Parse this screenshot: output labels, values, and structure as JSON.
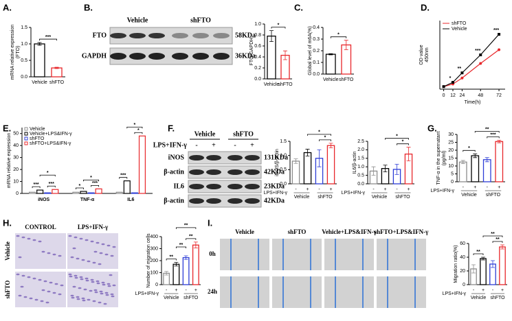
{
  "panel_labels": [
    "A.",
    "B.",
    "C.",
    "D.",
    "E.",
    "F.",
    "G.",
    "H.",
    "I."
  ],
  "blot_B": {
    "groups": [
      "Vehicle",
      "shFTO"
    ],
    "rows": [
      "FTO",
      "GAPDH"
    ],
    "sizes": [
      "58KDa",
      "36KDa"
    ]
  },
  "blot_F": {
    "groups": [
      "Vehicle",
      "shFTO"
    ],
    "treatment": "LPS+IFN-γ",
    "signs": [
      "-",
      "+",
      "-",
      "+"
    ],
    "rows": [
      "iNOS",
      "β-actin",
      "IL6",
      "β-actin"
    ],
    "sizes": [
      "131KDa",
      "42KDa",
      "23KDa",
      "42KDa"
    ]
  },
  "images_H": {
    "columns": [
      "CONTROL",
      "LPS+IFN-γ"
    ],
    "rows": [
      "Vehicle",
      "shFTO"
    ]
  },
  "images_I": {
    "columns": [
      "Vehicle",
      "shFTO",
      "Vehicle+LPS&IFN-γ",
      "shFTO+LPS&IFN-γ"
    ],
    "rows": [
      "0h",
      "24h"
    ]
  },
  "chart_data": [
    {
      "type": "bar",
      "ylabel": [
        "mRNA relative expression",
        "(FTO)"
      ],
      "categories": [
        "Vehicle",
        "shFTO"
      ],
      "values": [
        1.0,
        0.27
      ],
      "errors": [
        0.04,
        0.02
      ],
      "colors": [
        "#000000",
        "#e8262a"
      ],
      "ylim": [
        0,
        1.5
      ],
      "yticks": [
        {
          "value": 0,
          "label": "0.0"
        },
        {
          "value": 0.5,
          "label": "0.5"
        },
        {
          "value": 1,
          "label": "1.0"
        },
        {
          "value": 1.5,
          "label": "1.5"
        }
      ],
      "annotations": [
        "***"
      ]
    },
    {
      "type": "bar",
      "ylabel": [
        "FTO/GAPDH"
      ],
      "categories": [
        "Vehicle",
        "shFTO"
      ],
      "values": [
        0.78,
        0.43
      ],
      "errors": [
        0.1,
        0.08
      ],
      "colors": [
        "#000000",
        "#e8262a"
      ],
      "ylim": [
        0,
        1.0
      ],
      "yticks": [
        {
          "value": 0,
          "label": "0.0"
        },
        {
          "value": 0.2,
          "label": "0.2"
        },
        {
          "value": 0.4,
          "label": "0.4"
        },
        {
          "value": 0.6,
          "label": "0.6"
        },
        {
          "value": 0.8,
          "label": "0.8"
        },
        {
          "value": 1,
          "label": "1.0"
        }
      ],
      "annotations": [
        "*"
      ]
    },
    {
      "type": "bar",
      "ylabel": [
        "Global level of m6A(%)"
      ],
      "categories": [
        "Vehicle",
        "shFTO"
      ],
      "values": [
        0.17,
        0.25
      ],
      "errors": [
        0.005,
        0.04
      ],
      "colors": [
        "#000000",
        "#e8262a"
      ],
      "ylim": [
        0,
        0.4
      ],
      "yticks": [
        {
          "value": 0,
          "label": "0.0"
        },
        0.1,
        0.2,
        0.3,
        0.4
      ],
      "annotations": [
        "*"
      ]
    },
    {
      "type": "line",
      "xlabel": "Time(h)",
      "ylabel": [
        "OD value",
        "450nm"
      ],
      "x": [
        0,
        12,
        24,
        48,
        72
      ],
      "xlim": [
        -5,
        80
      ],
      "xticks": [
        0,
        12,
        24,
        48,
        72
      ],
      "ylim": [
        0,
        4
      ],
      "legend": "top-left",
      "series": [
        {
          "name": "shFTO",
          "color": "#e8262a",
          "values": [
            0.15,
            0.3,
            0.65,
            1.5,
            2.3
          ]
        },
        {
          "name": "Vehicle",
          "color": "#000000",
          "values": [
            0.15,
            0.4,
            0.95,
            2.0,
            3.2
          ]
        }
      ],
      "annotations": [
        "*",
        "**",
        "***",
        "***"
      ]
    },
    {
      "type": "grouped_bar",
      "ylabel": [
        "mRNA relative expression"
      ],
      "categories": [
        "iNOS",
        "TNF-α",
        "IL6"
      ],
      "legend": "top-left",
      "ylim": [
        0,
        55
      ],
      "yticks": [
        0,
        10,
        20,
        30,
        40,
        50
      ],
      "series": [
        {
          "name": "Vehicle",
          "color": "#8c8c8c",
          "values": [
            1,
            1,
            1
          ]
        },
        {
          "name": "Vehicle+LPS&IFN-γ",
          "color": "#000000",
          "values": [
            2.8,
            1.7,
            10.5
          ]
        },
        {
          "name": "shFTO",
          "color": "#2c3cd6",
          "values": [
            0.5,
            0.5,
            0.5
          ]
        },
        {
          "name": "shFTO+LPS&IFN-γ",
          "color": "#e8262a",
          "values": [
            3.3,
            3.8,
            48
          ]
        }
      ],
      "annotations": [
        "***",
        "*",
        "***",
        "*",
        "*",
        "***",
        "***",
        "*",
        "*"
      ]
    },
    {
      "type": "bar",
      "ylabel": [
        "iNOS/β-actin"
      ],
      "categories": [
        "-",
        "+",
        "-",
        "+"
      ],
      "groups": [
        "Vehicle",
        "shFTO"
      ],
      "treatment": "LPS+IFN-γ",
      "values": [
        0.8,
        1.1,
        0.9,
        1.35
      ],
      "errors": [
        0.08,
        0.12,
        0.3,
        0.08
      ],
      "colors": [
        "#8c8c8c",
        "#000000",
        "#2c3cd6",
        "#e8262a"
      ],
      "ylim": [
        0,
        1.5
      ],
      "yticks": [
        {
          "value": 0,
          "label": "0.0"
        },
        {
          "value": 0.5,
          "label": "0.5"
        },
        {
          "value": 1,
          "label": "1.0"
        },
        {
          "value": 1.5,
          "label": "1.5"
        }
      ],
      "annotations": [
        "*",
        "*"
      ]
    },
    {
      "type": "bar",
      "ylabel": [
        "IL6/β-actin"
      ],
      "categories": [
        "-",
        "+",
        "-",
        "+"
      ],
      "groups": [
        "Vehicle",
        "shFTO"
      ],
      "treatment": "LPS+IFN-γ",
      "values": [
        0.75,
        0.9,
        0.85,
        1.75
      ],
      "errors": [
        0.25,
        0.2,
        0.3,
        0.4
      ],
      "colors": [
        "#8c8c8c",
        "#000000",
        "#2c3cd6",
        "#e8262a"
      ],
      "ylim": [
        0,
        2.5
      ],
      "yticks": [
        {
          "value": 0,
          "label": "0.0"
        },
        0.5,
        {
          "value": 1,
          "label": "1.0"
        },
        1.5,
        {
          "value": 2,
          "label": "2.0"
        },
        2.5
      ],
      "annotations": [
        "*",
        "*"
      ]
    },
    {
      "type": "bar",
      "ylabel": [
        "TNF-α in the supernatant",
        "(pg/ml)"
      ],
      "categories": [
        "-",
        "+",
        "-",
        "+"
      ],
      "groups": [
        "Vehicle",
        "shFTO"
      ],
      "treatment": "LPS+IFN-γ",
      "values": [
        12.5,
        16.5,
        14,
        25.5
      ],
      "errors": [
        1,
        1.2,
        1.3,
        0.8
      ],
      "colors": [
        "#8c8c8c",
        "#000000",
        "#2c3cd6",
        "#e8262a"
      ],
      "ylim": [
        0,
        30
      ],
      "yticks": [
        0,
        5,
        10,
        15,
        20,
        25,
        30
      ],
      "annotations": [
        "*",
        "**",
        "***"
      ]
    },
    {
      "type": "bar",
      "ylabel": [
        "Number of migration cells"
      ],
      "categories": [
        "-",
        "+",
        "-",
        "+"
      ],
      "groups": [
        "Vehicle",
        "shFTO"
      ],
      "treatment": "LPS+IFN-γ",
      "values": [
        95,
        170,
        225,
        330
      ],
      "errors": [
        15,
        15,
        15,
        25
      ],
      "colors": [
        "#8c8c8c",
        "#000000",
        "#2c3cd6",
        "#e8262a"
      ],
      "ylim": [
        0,
        400
      ],
      "yticks": [
        0,
        100,
        200,
        300,
        400
      ],
      "annotations": [
        "**",
        "**",
        "**",
        "**"
      ]
    },
    {
      "type": "bar",
      "ylabel": [
        "Migration ratio(%)"
      ],
      "categories": [
        "-",
        "+",
        "-",
        "+"
      ],
      "groups": [
        "Vehicle",
        "shFTO"
      ],
      "treatment": "LPS+IFN-γ",
      "values": [
        23,
        38,
        30,
        55
      ],
      "errors": [
        6,
        2,
        5,
        3
      ],
      "colors": [
        "#8c8c8c",
        "#000000",
        "#2c3cd6",
        "#e8262a"
      ],
      "ylim": [
        0,
        60
      ],
      "yticks": [
        0,
        20,
        40,
        60
      ],
      "annotations": [
        "**",
        "**",
        "**"
      ]
    }
  ]
}
